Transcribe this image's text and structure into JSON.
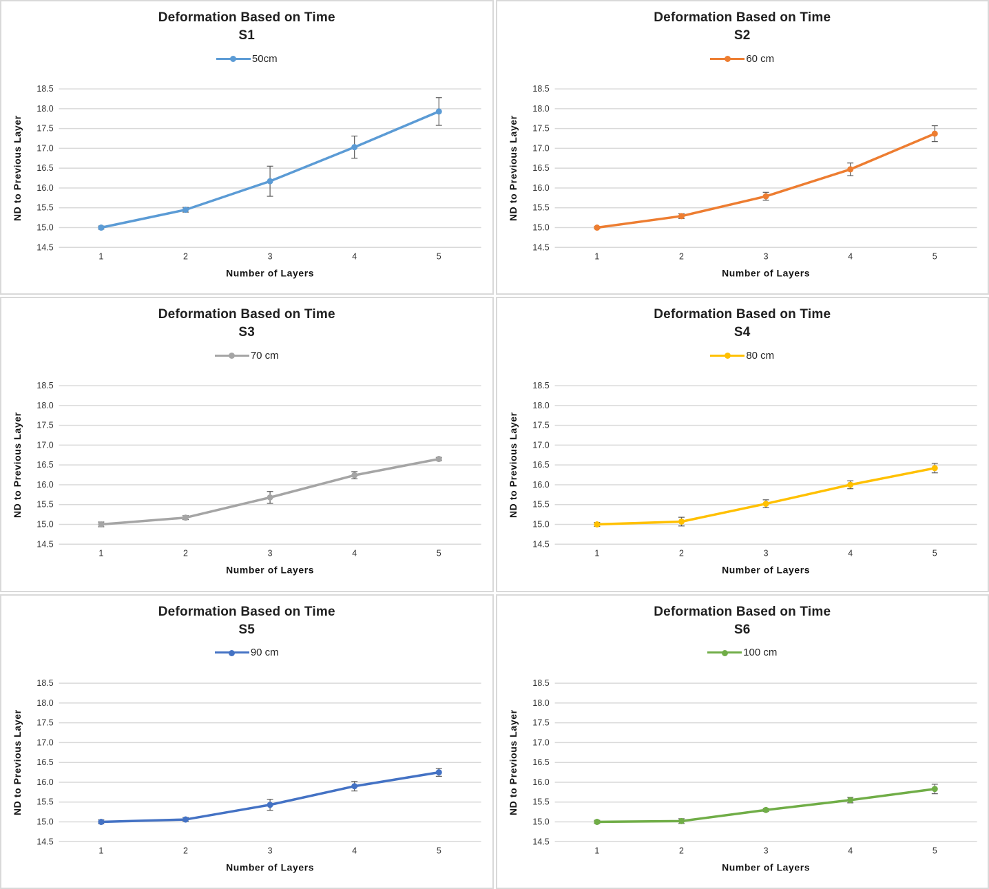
{
  "page": {
    "background": "#FFFFFF"
  },
  "colors": {
    "grid_line": "#D9D9D9",
    "error_bar": "#595959",
    "panel_border": "#D9D9D9",
    "axis_text": "#333333",
    "title_text": "#1F1F1F"
  },
  "chart_data": [
    {
      "type": "line",
      "title": "Deformation Based on Time",
      "subtitle": "S1",
      "legend": "50cm",
      "color": "#5B9BD5",
      "x": [
        1,
        2,
        3,
        4,
        5
      ],
      "values": [
        15.0,
        15.45,
        16.17,
        17.03,
        17.93
      ],
      "errors": [
        0.04,
        0.06,
        0.38,
        0.28,
        0.35
      ],
      "xlabel": "Number of Layers",
      "ylabel": "ND to Previous Layer",
      "ylim": [
        14.5,
        18.5
      ],
      "ytick_step": 0.5,
      "grid": true,
      "legend_position": "top"
    },
    {
      "type": "line",
      "title": "Deformation Based on Time",
      "subtitle": "S2",
      "legend": "60 cm",
      "color": "#ED7D31",
      "x": [
        1,
        2,
        3,
        4,
        5
      ],
      "values": [
        15.0,
        15.29,
        15.79,
        16.47,
        17.37
      ],
      "errors": [
        0.03,
        0.06,
        0.1,
        0.16,
        0.2
      ],
      "xlabel": "Number of Layers",
      "ylabel": "ND to Previous Layer",
      "ylim": [
        14.5,
        18.5
      ],
      "ytick_step": 0.5,
      "grid": true,
      "legend_position": "top"
    },
    {
      "type": "line",
      "title": "Deformation Based on Time",
      "subtitle": "S3",
      "legend": "70 cm",
      "color": "#A5A5A5",
      "x": [
        1,
        2,
        3,
        4,
        5
      ],
      "values": [
        15.0,
        15.17,
        15.68,
        16.24,
        16.65
      ],
      "errors": [
        0.06,
        0.05,
        0.15,
        0.09,
        0.04
      ],
      "xlabel": "Number of Layers",
      "ylabel": "ND to Previous Layer",
      "ylim": [
        14.5,
        18.5
      ],
      "ytick_step": 0.5,
      "grid": true,
      "legend_position": "top"
    },
    {
      "type": "line",
      "title": "Deformation Based on Time",
      "subtitle": "S4",
      "legend": "80 cm",
      "color": "#FFC000",
      "x": [
        1,
        2,
        3,
        4,
        5
      ],
      "values": [
        15.0,
        15.07,
        15.52,
        16.0,
        16.42
      ],
      "errors": [
        0.05,
        0.11,
        0.1,
        0.1,
        0.12
      ],
      "xlabel": "Number of Layers",
      "ylabel": "ND to Previous Layer",
      "ylim": [
        14.5,
        18.5
      ],
      "ytick_step": 0.5,
      "grid": true,
      "legend_position": "top"
    },
    {
      "type": "line",
      "title": "Deformation Based on Time",
      "subtitle": "S5",
      "legend": "90 cm",
      "color": "#4472C4",
      "x": [
        1,
        2,
        3,
        4,
        5
      ],
      "values": [
        15.0,
        15.06,
        15.43,
        15.9,
        16.25
      ],
      "errors": [
        0.05,
        0.05,
        0.14,
        0.12,
        0.1
      ],
      "xlabel": "Number of Layers",
      "ylabel": "ND to Previous Layer",
      "ylim": [
        14.5,
        18.5
      ],
      "ytick_step": 0.5,
      "grid": true,
      "legend_position": "top"
    },
    {
      "type": "line",
      "title": "Deformation Based on Time",
      "subtitle": "S6",
      "legend": "100 cm",
      "color": "#70AD47",
      "x": [
        1,
        2,
        3,
        4,
        5
      ],
      "values": [
        15.0,
        15.02,
        15.3,
        15.55,
        15.83
      ],
      "errors": [
        0.04,
        0.06,
        0.04,
        0.07,
        0.12
      ],
      "xlabel": "Number of Layers",
      "ylabel": "ND to Previous Layer",
      "ylim": [
        14.5,
        18.5
      ],
      "ytick_step": 0.5,
      "grid": true,
      "legend_position": "top"
    }
  ]
}
